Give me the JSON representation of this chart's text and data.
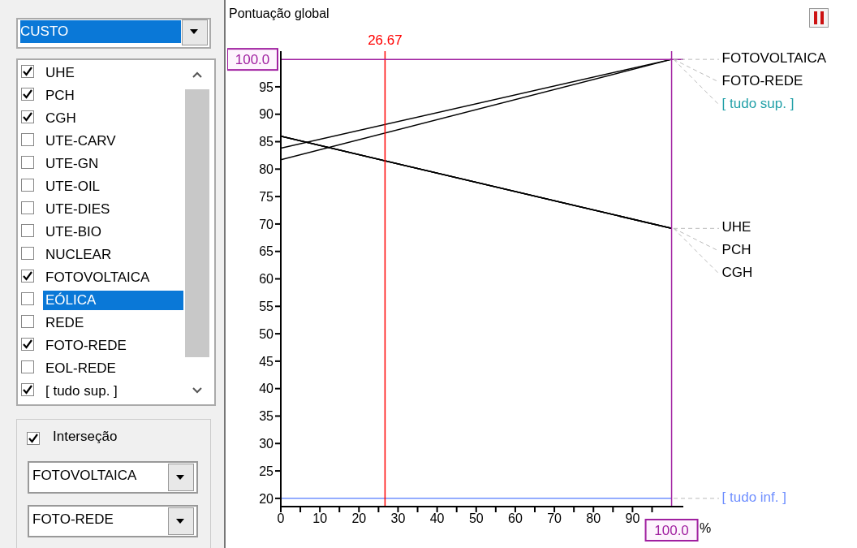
{
  "chart_data": [
    {
      "type": "other",
      "annotations": [
        "CUSTO",
        "UHE",
        "PCH",
        "CGH",
        "UTE-CARV",
        "UTE-GN",
        "UTE-OIL",
        "UTE-DIES",
        "UTE-BIO",
        "NUCLEAR",
        "FOTOVOLTAICA",
        "EÓLICA",
        "REDE",
        "FOTO-REDE",
        "EOL-REDE",
        "[ tudo sup. ]",
        "Interseção",
        "FOTOVOLTAICA",
        "FOTO-REDE"
      ]
    },
    {
      "type": "line",
      "ylabel": "Pontuação global",
      "xlabel": "%",
      "x": [
        0,
        100
      ],
      "series": [
        {
          "name": "UHE",
          "color": "#000000",
          "values": [
            86.0,
            69.2
          ]
        },
        {
          "name": "PCH",
          "color": "#000000",
          "values": [
            86.0,
            69.2
          ]
        },
        {
          "name": "CGH",
          "color": "#000000",
          "values": [
            86.0,
            69.2
          ]
        },
        {
          "name": "FOTOVOLTAICA",
          "color": "#000000",
          "values": [
            83.8,
            100
          ]
        },
        {
          "name": "FOTO-REDE",
          "color": "#000000",
          "values": [
            81.7,
            100
          ]
        },
        {
          "name": "[ tudo sup. ]",
          "color": "#22a0a8",
          "values": [
            null,
            null
          ]
        },
        {
          "name": "[ tudo inf. ]",
          "color": "#6f8fff",
          "values": [
            20,
            20
          ]
        }
      ],
      "xlim": [
        0,
        103
      ],
      "ylim": [
        18.5,
        101.5
      ],
      "xticks": [
        0,
        {
          "value": 5,
          "label": null
        },
        10,
        {
          "value": 15,
          "label": null
        },
        20,
        {
          "value": 25,
          "label": null
        },
        30,
        {
          "value": 35,
          "label": null
        },
        40,
        {
          "value": 45,
          "label": null
        },
        50,
        {
          "value": 55,
          "label": null
        },
        60,
        {
          "value": 65,
          "label": null
        },
        70,
        {
          "value": 75,
          "label": null
        },
        80,
        {
          "value": 85,
          "label": null
        },
        90,
        {
          "value": 95,
          "label": null
        }
      ],
      "yticks": [
        20,
        25,
        30,
        35,
        40,
        45,
        50,
        55,
        60,
        65,
        70,
        75,
        80,
        85,
        90,
        95
      ],
      "ref_lines": [
        {
          "axis": "x",
          "value": 26.67,
          "label": "26.67",
          "color": "#ff0000"
        },
        {
          "axis": "y",
          "value": 100,
          "label": "100.0",
          "color": "#a020a0"
        },
        {
          "axis": "x",
          "value": 100,
          "label": "100.0",
          "color": "#a020a0"
        }
      ],
      "grid": false,
      "marker": "none",
      "line_style": "solid"
    }
  ]
}
